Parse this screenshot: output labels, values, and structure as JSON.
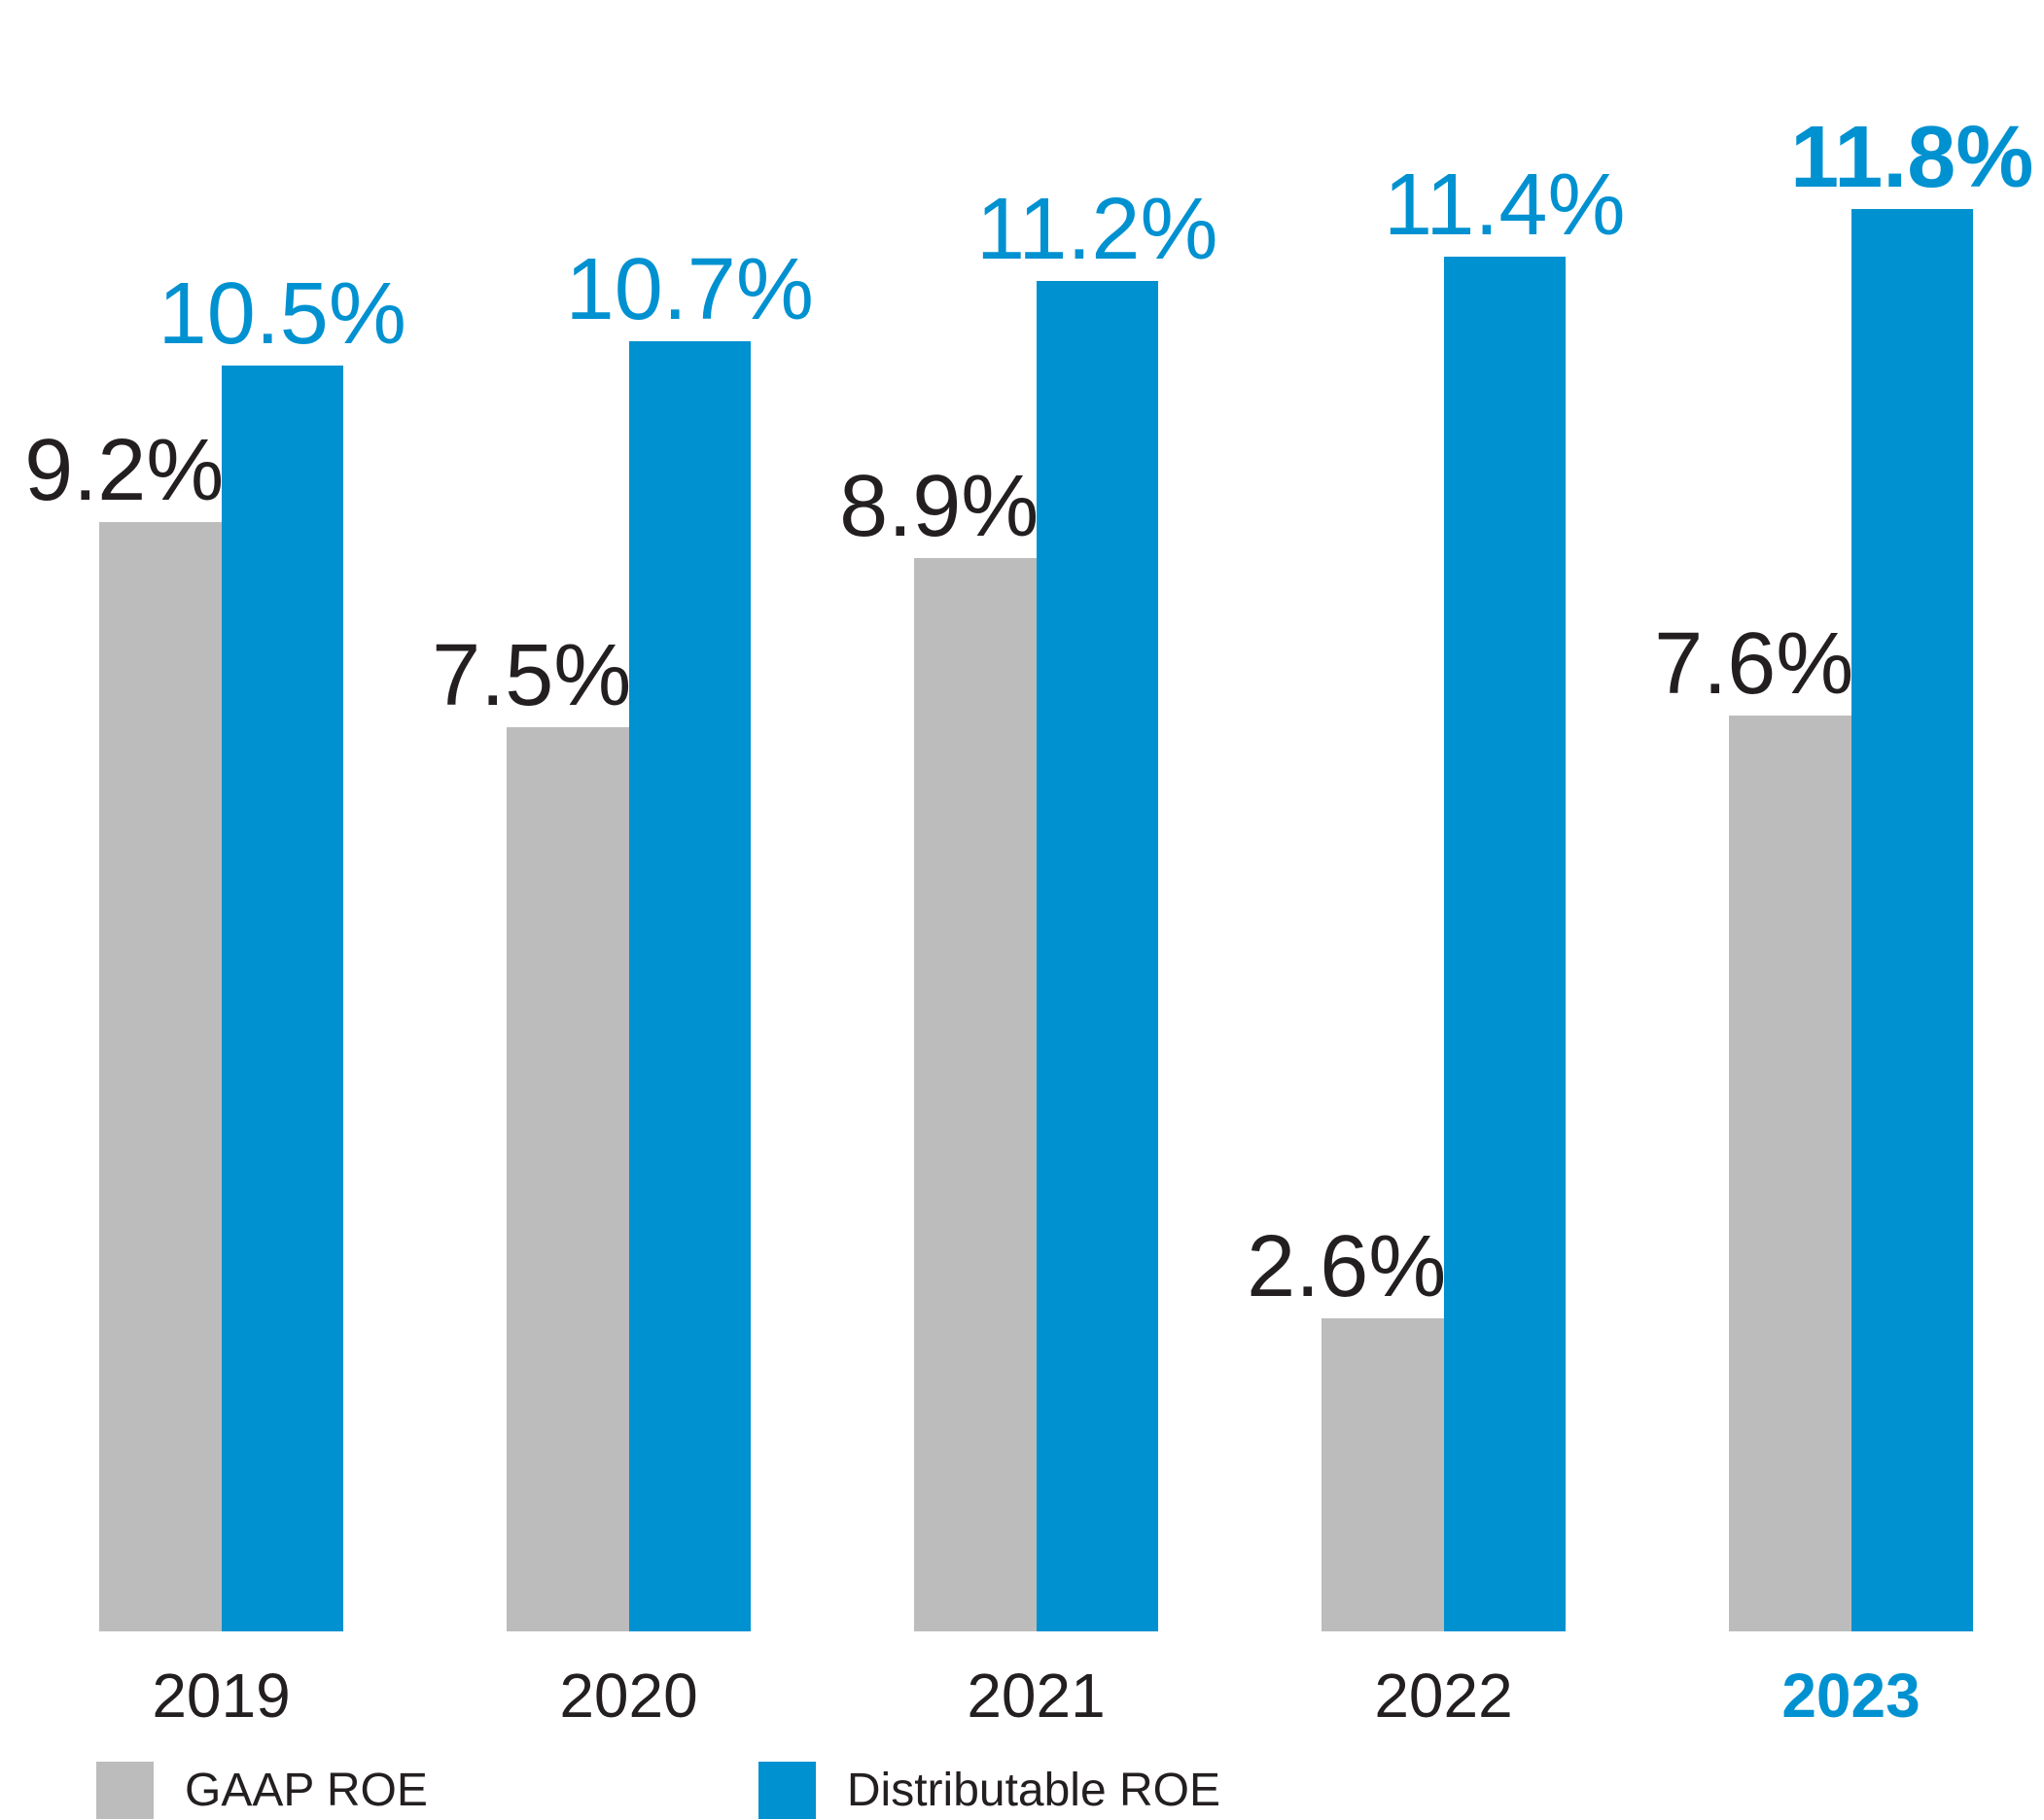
{
  "chart_data": {
    "type": "bar",
    "categories": [
      "2019",
      "2020",
      "2021",
      "2022",
      "2023"
    ],
    "series": [
      {
        "name": "GAAP ROE",
        "color": "#bdbcbc",
        "values": [
          9.2,
          7.5,
          8.9,
          2.6,
          7.6
        ],
        "labels": [
          "9.2%",
          "7.5%",
          "8.9%",
          "2.6%",
          "7.6%"
        ]
      },
      {
        "name": "Distributable ROE",
        "color": "#0091d1",
        "values": [
          10.5,
          10.7,
          11.2,
          11.4,
          11.8
        ],
        "labels": [
          "10.5%",
          "10.7%",
          "11.2%",
          "11.4%",
          "11.8%"
        ]
      }
    ],
    "ylim": [
      0,
      13.5
    ],
    "grid": false,
    "axes_shown": false,
    "value_labels_shown": true,
    "legend_position": "bottom-left",
    "highlighted_category": "2023"
  },
  "colors": {
    "text": "#231f20",
    "background": "#ffffff"
  }
}
